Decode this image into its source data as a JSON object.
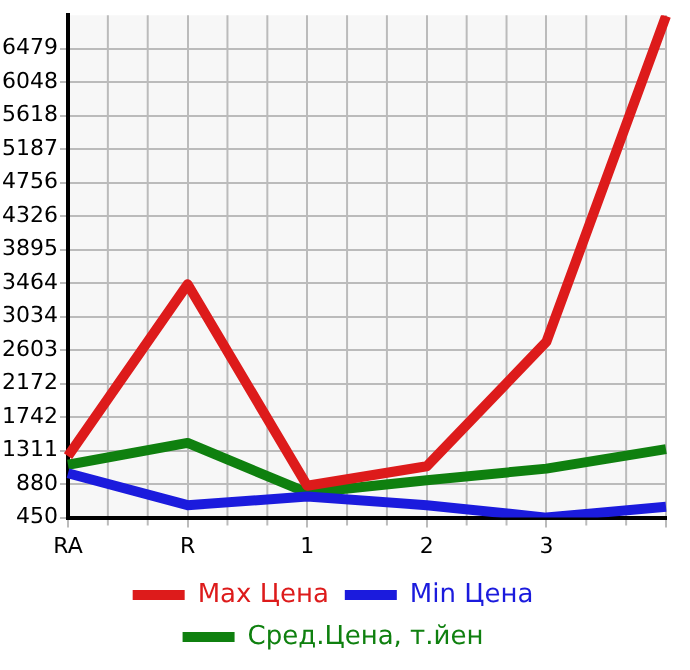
{
  "chart_data": {
    "type": "line",
    "categories": [
      "RA",
      "R",
      "1",
      "2",
      "3",
      null
    ],
    "series": [
      {
        "name": "Max Цена",
        "color": "#dd1b1b",
        "values": [
          1240,
          3450,
          860,
          1110,
          2710,
          6900
        ]
      },
      {
        "name": "Min Цена",
        "color": "#1b1bdd",
        "values": [
          1020,
          610,
          720,
          610,
          450,
          590
        ]
      },
      {
        "name": "Сред.Цена, т.йен",
        "color": "#0f800f",
        "values": [
          1130,
          1410,
          770,
          930,
          1080,
          1330
        ]
      }
    ],
    "ylim": [
      450,
      6910
    ],
    "yticks": [
      450,
      880,
      1311,
      1742,
      2172,
      2603,
      3034,
      3464,
      3895,
      4326,
      4756,
      5187,
      5618,
      6048,
      6479
    ],
    "grid": true,
    "legend": "bottom",
    "marker": "none",
    "line_style": "solid"
  }
}
